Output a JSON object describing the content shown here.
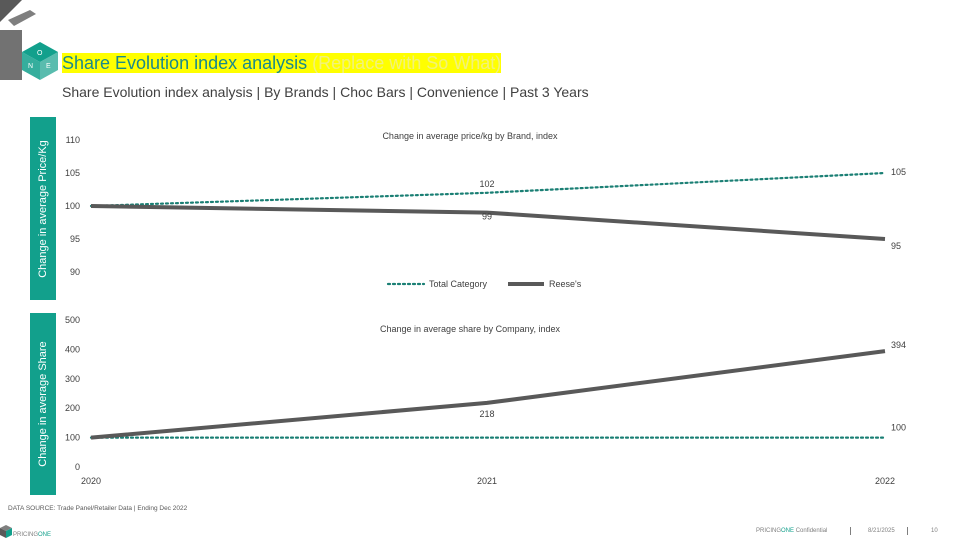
{
  "header": {
    "title_main": "Share Evolution index analysis",
    "title_placeholder": "(Replace with So What)",
    "subtitle": "Share Evolution index analysis | By Brands | Choc Bars | Convenience | Past 3 Years"
  },
  "logo": {
    "letters": [
      "O",
      "N",
      "E"
    ]
  },
  "colors": {
    "accent": "#12a08c",
    "title_teal": "#1a8a8a",
    "highlight": "#ffff00",
    "series_dark": "#595959",
    "series_dotted": "#1a7f74"
  },
  "chart_data": [
    {
      "type": "line",
      "title": "Change in average price/kg by Brand, index",
      "ylabel": "Change in average Price/Kg",
      "x": [
        "2020",
        "2021",
        "2022"
      ],
      "ylim": [
        90,
        110
      ],
      "yticks": [
        "110",
        "105",
        "100",
        "95",
        "90"
      ],
      "series": [
        {
          "name": "Total Category",
          "style": "dotted",
          "values": [
            100,
            102,
            105
          ],
          "labels": [
            "",
            "102",
            "105"
          ]
        },
        {
          "name": "Reese's",
          "style": "solid",
          "values": [
            100,
            99,
            95
          ],
          "labels": [
            "",
            "99",
            "95"
          ]
        }
      ],
      "legend": "bottom-center"
    },
    {
      "type": "line",
      "title": "Change in average share by Company, index",
      "ylabel": "Change in average Share",
      "x": [
        "2020",
        "2021",
        "2022"
      ],
      "ylim": [
        0,
        500
      ],
      "yticks": [
        "500",
        "400",
        "300",
        "200",
        "100",
        "0"
      ],
      "series": [
        {
          "style": "dotted",
          "values": [
            100,
            100,
            100
          ],
          "labels": [
            "",
            "",
            "100"
          ]
        },
        {
          "style": "solid",
          "values": [
            100,
            218,
            394
          ],
          "labels": [
            "",
            "218",
            "394"
          ]
        }
      ]
    }
  ],
  "footer": {
    "source": "DATA SOURCE: Trade Panel/Retailer Data | Ending Dec 2022",
    "brand_pre": "PRICING",
    "brand_one": "ONE",
    "confidential_pre": "PRICING",
    "confidential_one": "ONE",
    "confidential_post": " Confidential",
    "date": "8/21/2025",
    "page": "10"
  }
}
